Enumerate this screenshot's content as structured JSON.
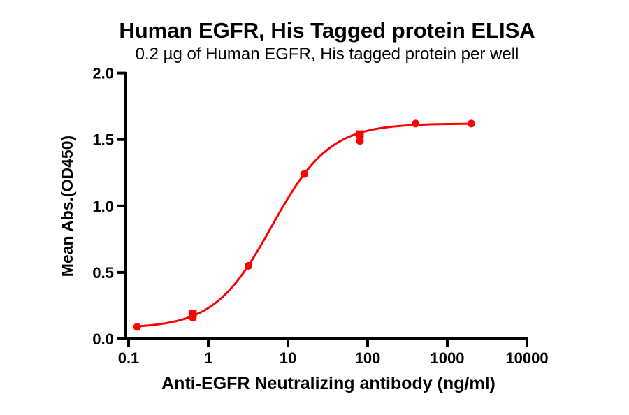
{
  "figure": {
    "title": "Human EGFR, His Tagged protein ELISA",
    "subtitle": "0.2 µg of Human EGFR, His tagged protein per well"
  },
  "colors": {
    "accent": "#FE0000",
    "axis": "#000000",
    "background": "#FFFFFF",
    "text": "#000000"
  },
  "chart_data": {
    "type": "scatter",
    "title": "Human EGFR, His Tagged protein ELISA",
    "subtitle": "0.2 µg of Human EGFR, His tagged protein per well",
    "xlabel": "Anti-EGFR Neutralizing antibody (ng/ml)",
    "ylabel": "Mean Abs.(OD450)",
    "x_scale": "log10",
    "xlim": [
      0.1,
      10000
    ],
    "ylim": [
      0.0,
      2.0
    ],
    "x_ticks": [
      0.1,
      1,
      10,
      100,
      1000,
      10000
    ],
    "x_tick_labels": [
      "0.1",
      "1",
      "10",
      "100",
      "1000",
      "10000"
    ],
    "y_ticks": [
      0.0,
      0.5,
      1.0,
      1.5,
      2.0
    ],
    "y_tick_labels": [
      "0.0",
      "0.5",
      "1.0",
      "1.5",
      "2.0"
    ],
    "grid": false,
    "legend": "none",
    "series": [
      {
        "name": "mean-abs-circles",
        "marker": "circle",
        "x": [
          0.128,
          0.64,
          3.2,
          16,
          80,
          400,
          2000
        ],
        "y": [
          0.09,
          0.16,
          0.55,
          1.24,
          1.49,
          1.62,
          1.62
        ]
      },
      {
        "name": "mean-abs-squares",
        "marker": "square",
        "x": [
          0.64,
          80
        ],
        "y": [
          0.19,
          1.54
        ]
      }
    ],
    "fit_curve": {
      "model": "4PL-sigmoid",
      "bottom": 0.08,
      "top": 1.62,
      "ec50": 6.3,
      "hill": 1.2,
      "x_start": 0.128,
      "x_end": 2000
    }
  }
}
